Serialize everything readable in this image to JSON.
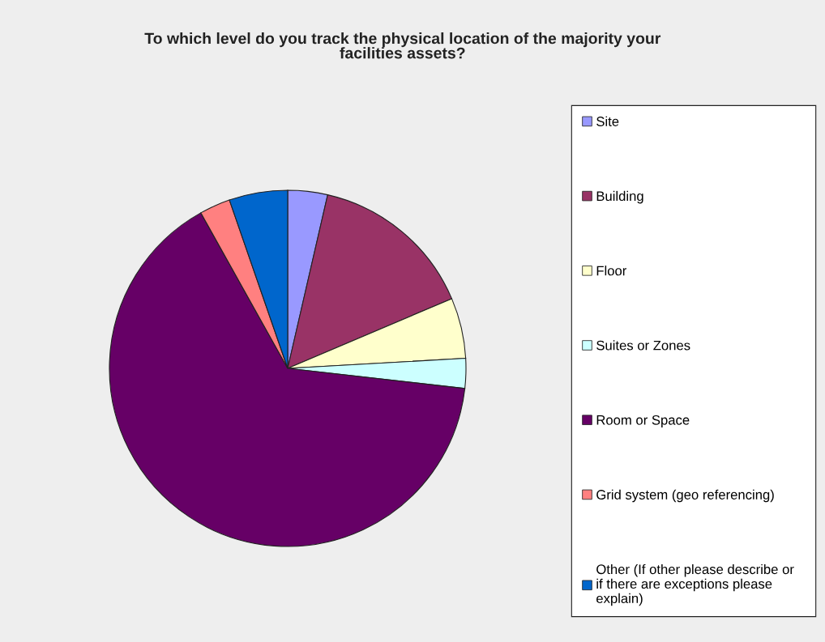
{
  "chart_data": {
    "type": "pie",
    "title": "To which level do you track the physical location of the majority your facilities assets?",
    "categories": [
      "Site",
      "Building",
      "Floor",
      "Suites or Zones",
      "Room or Space",
      "Grid system (geo referencing)",
      "Other (If other please describe or if there are exceptions please explain)"
    ],
    "values": [
      3.6,
      15.0,
      5.5,
      2.7,
      65.1,
      2.8,
      5.3
    ],
    "colors": [
      "#9999ff",
      "#993366",
      "#ffffcc",
      "#ccffff",
      "#660066",
      "#ff8080",
      "#0066cc"
    ],
    "legend": "right"
  }
}
